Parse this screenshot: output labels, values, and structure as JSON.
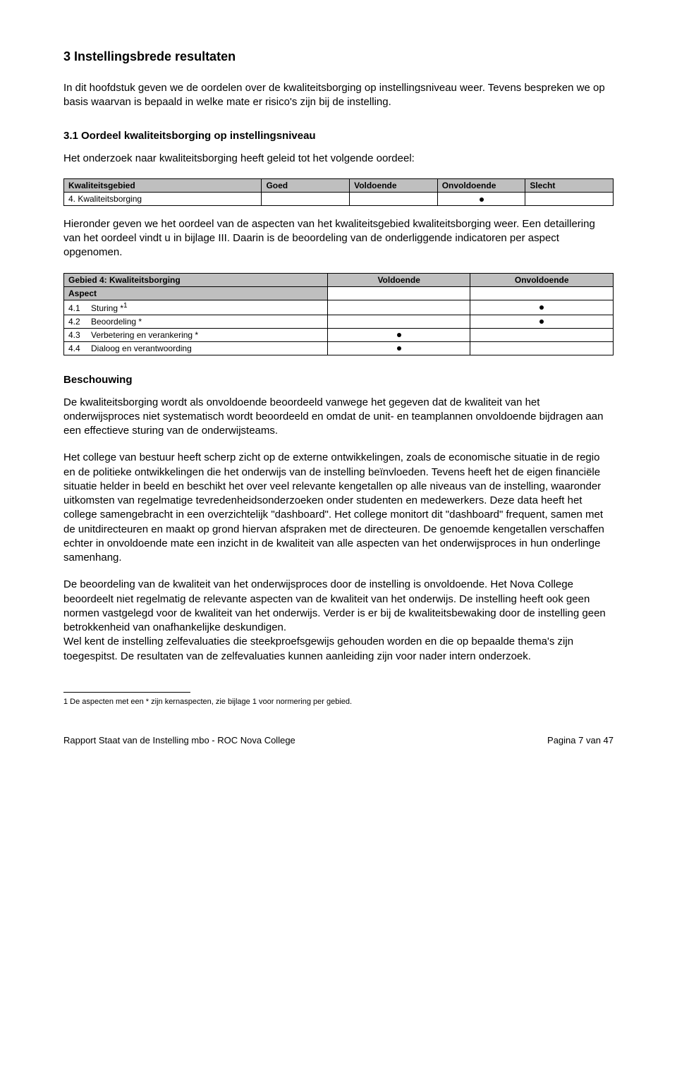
{
  "title": "3 Instellingsbrede resultaten",
  "intro": "In dit hoofdstuk geven we de oordelen over de kwaliteitsborging op instellingsniveau weer. Tevens bespreken we op basis waarvan is bepaald in welke mate er risico's zijn bij de instelling.",
  "section31_heading": "3.1 Oordeel kwaliteitsborging op instellingsniveau",
  "section31_intro": "Het onderzoek naar kwaliteitsborging heeft geleid tot het volgende oordeel:",
  "table1": {
    "headers": [
      "Kwaliteitsgebied",
      "Goed",
      "Voldoende",
      "Onvoldoende",
      "Slecht"
    ],
    "row_label": "4. Kwaliteitsborging",
    "dot_col": 3
  },
  "para_hieronder": "Hieronder geven we het oordeel van de aspecten van het kwaliteitsgebied kwaliteitsborging weer. Een detaillering van het oordeel vindt u in bijlage III. Daarin is de beoordeling van de onderliggende indicatoren per aspect opgenomen.",
  "table2": {
    "header_left": "Gebied 4: Kwaliteitsborging",
    "header_cols": [
      "Voldoende",
      "Onvoldoende"
    ],
    "aspect_label": "Aspect",
    "rows": [
      {
        "num": "4.1",
        "label": "Sturing *",
        "sup": "1",
        "dot": 2
      },
      {
        "num": "4.2",
        "label": "Beoordeling *",
        "sup": null,
        "dot": 2
      },
      {
        "num": "4.3",
        "label": "Verbetering en verankering *",
        "sup": null,
        "dot": 1
      },
      {
        "num": "4.4",
        "label": "Dialoog en verantwoording",
        "sup": null,
        "dot": 1
      }
    ]
  },
  "beschouwing_heading": "Beschouwing",
  "para_b1": "De kwaliteitsborging wordt als onvoldoende beoordeeld vanwege het gegeven dat de kwaliteit van het onderwijsproces niet systematisch wordt beoordeeld en omdat de unit- en teamplannen onvoldoende bijdragen aan een effectieve sturing van de onderwijsteams.",
  "para_b2": "Het college van bestuur heeft scherp zicht op de externe ontwikkelingen, zoals de economische situatie in de regio en de politieke ontwikkelingen die het onderwijs van de instelling beïnvloeden. Tevens heeft het de eigen financiële situatie helder in beeld en beschikt het over veel relevante kengetallen op alle niveaus van de instelling, waaronder uitkomsten van regelmatige tevredenheidsonderzoeken onder studenten en medewerkers. Deze data heeft het college samengebracht in een overzichtelijk \"dashboard\". Het college monitort dit \"dashboard\" frequent, samen met de unitdirecteuren en maakt op grond hiervan afspraken met de directeuren. De genoemde kengetallen verschaffen echter in onvoldoende mate een inzicht in de kwaliteit van alle aspecten van het onderwijsproces in hun onderlinge samenhang.",
  "para_b3": "De beoordeling van de kwaliteit van het onderwijsproces door de instelling is onvoldoende. Het Nova College beoordeelt niet regelmatig de relevante aspecten van de kwaliteit van het onderwijs. De instelling heeft ook geen normen vastgelegd voor de kwaliteit van het onderwijs. Verder is er bij de kwaliteitsbewaking door de instelling geen betrokkenheid van onafhankelijke deskundigen.\nWel kent de instelling zelfevaluaties die steekproefsgewijs gehouden worden en die op bepaalde thema's zijn toegespitst. De resultaten van de zelfevaluaties kunnen aanleiding zijn voor nader intern onderzoek.",
  "footnote": "1 De aspecten met een * zijn kernaspecten, zie bijlage 1 voor normering per gebied.",
  "footer_left": "Rapport Staat van de Instelling mbo -  ROC Nova College",
  "footer_right": "Pagina 7 van 47"
}
